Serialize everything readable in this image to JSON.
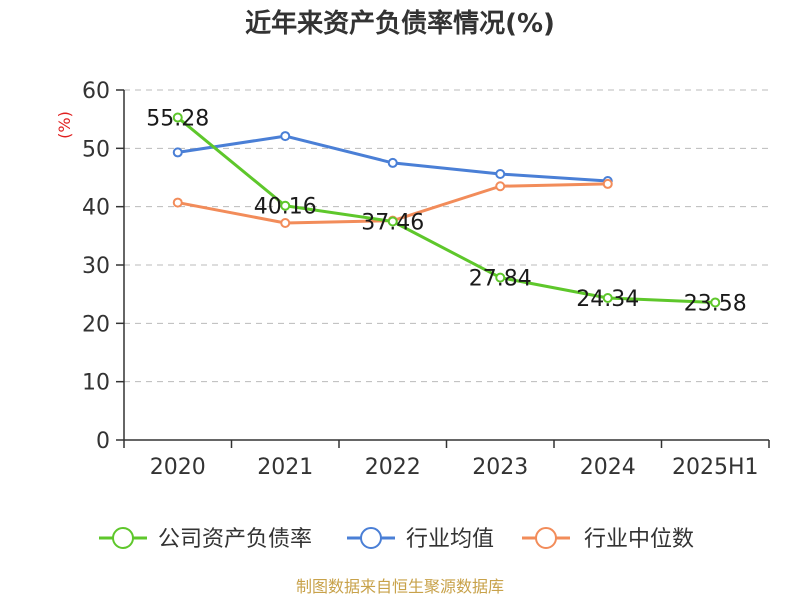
{
  "chart_data": {
    "type": "line",
    "title": "近年来资产负债率情况(%)",
    "ylabel": "(%)",
    "xlabel": "",
    "categories": [
      "2020",
      "2021",
      "2022",
      "2023",
      "2024",
      "2025H1"
    ],
    "ylim": [
      0,
      60
    ],
    "yticks": [
      0,
      10,
      20,
      30,
      40,
      50,
      60
    ],
    "grid": true,
    "legend_position": "bottom",
    "series": [
      {
        "name": "公司资产负债率",
        "color": "#5ec72b",
        "values": [
          55.28,
          40.16,
          37.46,
          27.84,
          24.34,
          23.58
        ],
        "labels": [
          "55.28",
          "40.16",
          "37.46",
          "27.84",
          "24.34",
          "23.58"
        ]
      },
      {
        "name": "行业均值",
        "color": "#4a7fd6",
        "values": [
          49.3,
          52.1,
          47.5,
          45.6,
          44.4,
          null
        ]
      },
      {
        "name": "行业中位数",
        "color": "#f28c5a",
        "values": [
          40.7,
          37.2,
          37.6,
          43.5,
          43.9,
          null
        ]
      }
    ]
  },
  "footer": {
    "source": "制图数据来自恒生聚源数据库"
  }
}
